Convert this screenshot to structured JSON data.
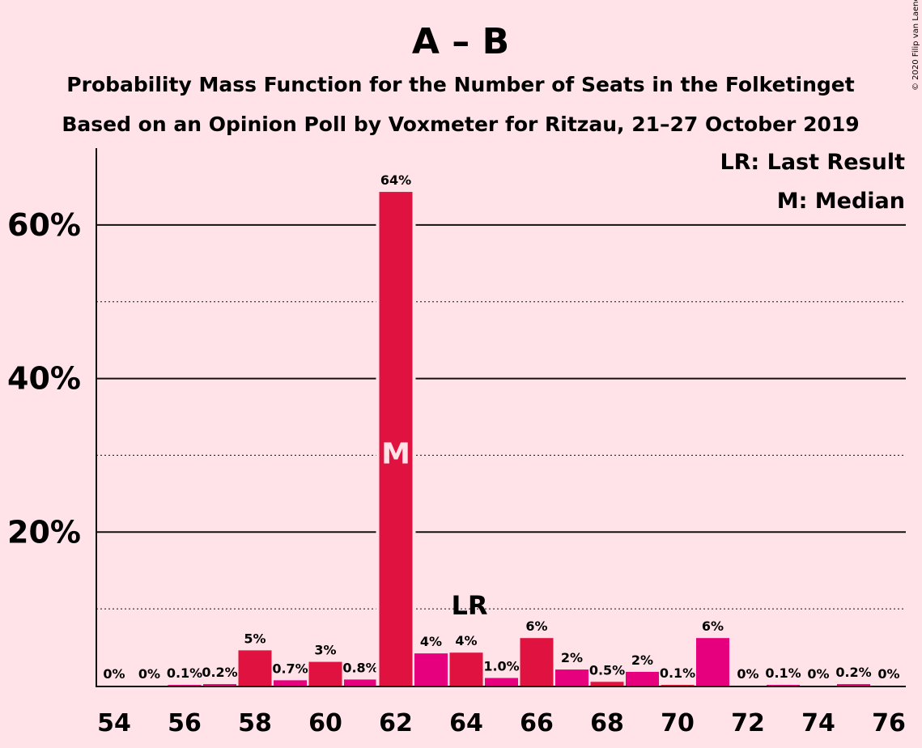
{
  "title": "A – B",
  "subtitle1": "Probability Mass Function for the Number of Seats in the Folketinget",
  "subtitle2": "Based on an Opinion Poll by Voxmeter for Ritzau, 21–27 October 2019",
  "copyright": "© 2020 Filip van Laenen",
  "legend": {
    "lr": "LR: Last Result",
    "m": "M: Median"
  },
  "colors": {
    "background": "#ffe3e8",
    "primary": "#e0123f",
    "secondary": "#e6007e"
  },
  "chart_data": {
    "type": "bar",
    "x": [
      54,
      55,
      56,
      57,
      58,
      59,
      60,
      61,
      62,
      63,
      64,
      65,
      66,
      67,
      68,
      69,
      70,
      71,
      72,
      73,
      74,
      75,
      76
    ],
    "values": [
      0,
      0,
      0.1,
      0.2,
      4.6,
      0.7,
      3.1,
      0.8,
      64.3,
      4.2,
      4.3,
      1.0,
      6.2,
      2.1,
      0.5,
      1.8,
      0.1,
      6.2,
      0,
      0.1,
      0,
      0.2,
      0
    ],
    "labels": [
      "0%",
      "0%",
      "0.1%",
      "0.2%",
      "5%",
      "0.7%",
      "3%",
      "0.8%",
      "64%",
      "4%",
      "4%",
      "1.0%",
      "6%",
      "2%",
      "0.5%",
      "2%",
      "0.1%",
      "6%",
      "0%",
      "0.1%",
      "0%",
      "0.2%",
      "0%"
    ],
    "bar_colors": [
      "secondary",
      "secondary",
      "secondary",
      "secondary",
      "primary",
      "secondary",
      "primary",
      "secondary",
      "primary",
      "secondary",
      "primary",
      "secondary",
      "primary",
      "secondary",
      "primary",
      "secondary",
      "primary",
      "secondary",
      "primary",
      "secondary",
      "primary",
      "secondary",
      "primary"
    ],
    "x_tick_labels": [
      "54",
      "56",
      "58",
      "60",
      "62",
      "64",
      "66",
      "68",
      "70",
      "72",
      "74",
      "76"
    ],
    "y_ticks": [
      20,
      40,
      60
    ],
    "y_tick_labels": [
      "20%",
      "40%",
      "60%"
    ],
    "ylim": [
      0,
      70
    ],
    "median_seat": 62,
    "median_label": "M",
    "last_result_seat": 64,
    "last_result_label": "LR",
    "grid": true
  }
}
